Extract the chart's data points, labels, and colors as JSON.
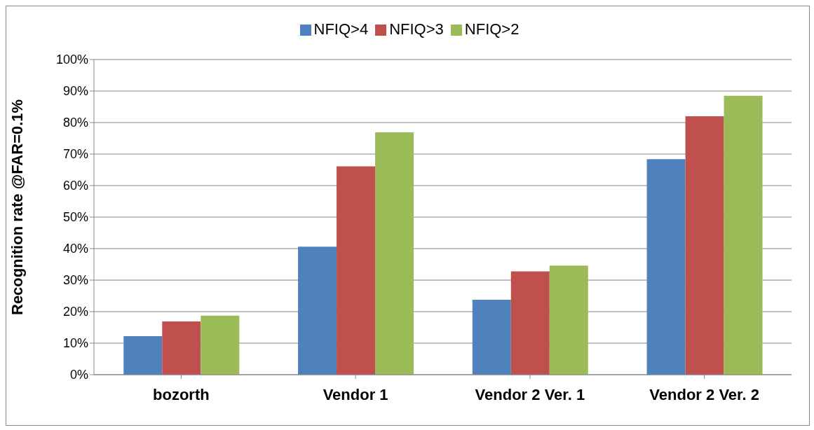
{
  "chart_data": {
    "type": "bar",
    "ylabel": "Recognition rate @FAR=0.1%",
    "categories": [
      "bozorth",
      "Vendor 1",
      "Vendor 2 Ver. 1",
      "Vendor 2 Ver. 2"
    ],
    "series": [
      {
        "name": "NFIQ>4",
        "color": "#4f81bd",
        "values": [
          12.2,
          40.6,
          23.8,
          68.4
        ]
      },
      {
        "name": "NFIQ>3",
        "color": "#c0504d",
        "values": [
          16.9,
          66.1,
          32.8,
          82.0
        ]
      },
      {
        "name": "NFIQ>2",
        "color": "#9bbb59",
        "values": [
          18.7,
          76.9,
          34.6,
          88.5
        ]
      }
    ],
    "ylim": [
      0,
      100
    ],
    "yticks": [
      {
        "value": 0,
        "label": "0%"
      },
      {
        "value": 10,
        "label": "10%"
      },
      {
        "value": 20,
        "label": "20%"
      },
      {
        "value": 30,
        "label": "30%"
      },
      {
        "value": 40,
        "label": "40%"
      },
      {
        "value": 50,
        "label": "50%"
      },
      {
        "value": 60,
        "label": "60%"
      },
      {
        "value": 70,
        "label": "70%"
      },
      {
        "value": 80,
        "label": "80%"
      },
      {
        "value": 90,
        "label": "90%"
      },
      {
        "value": 100,
        "label": "100%"
      }
    ],
    "grid": "y",
    "legend": "top"
  }
}
